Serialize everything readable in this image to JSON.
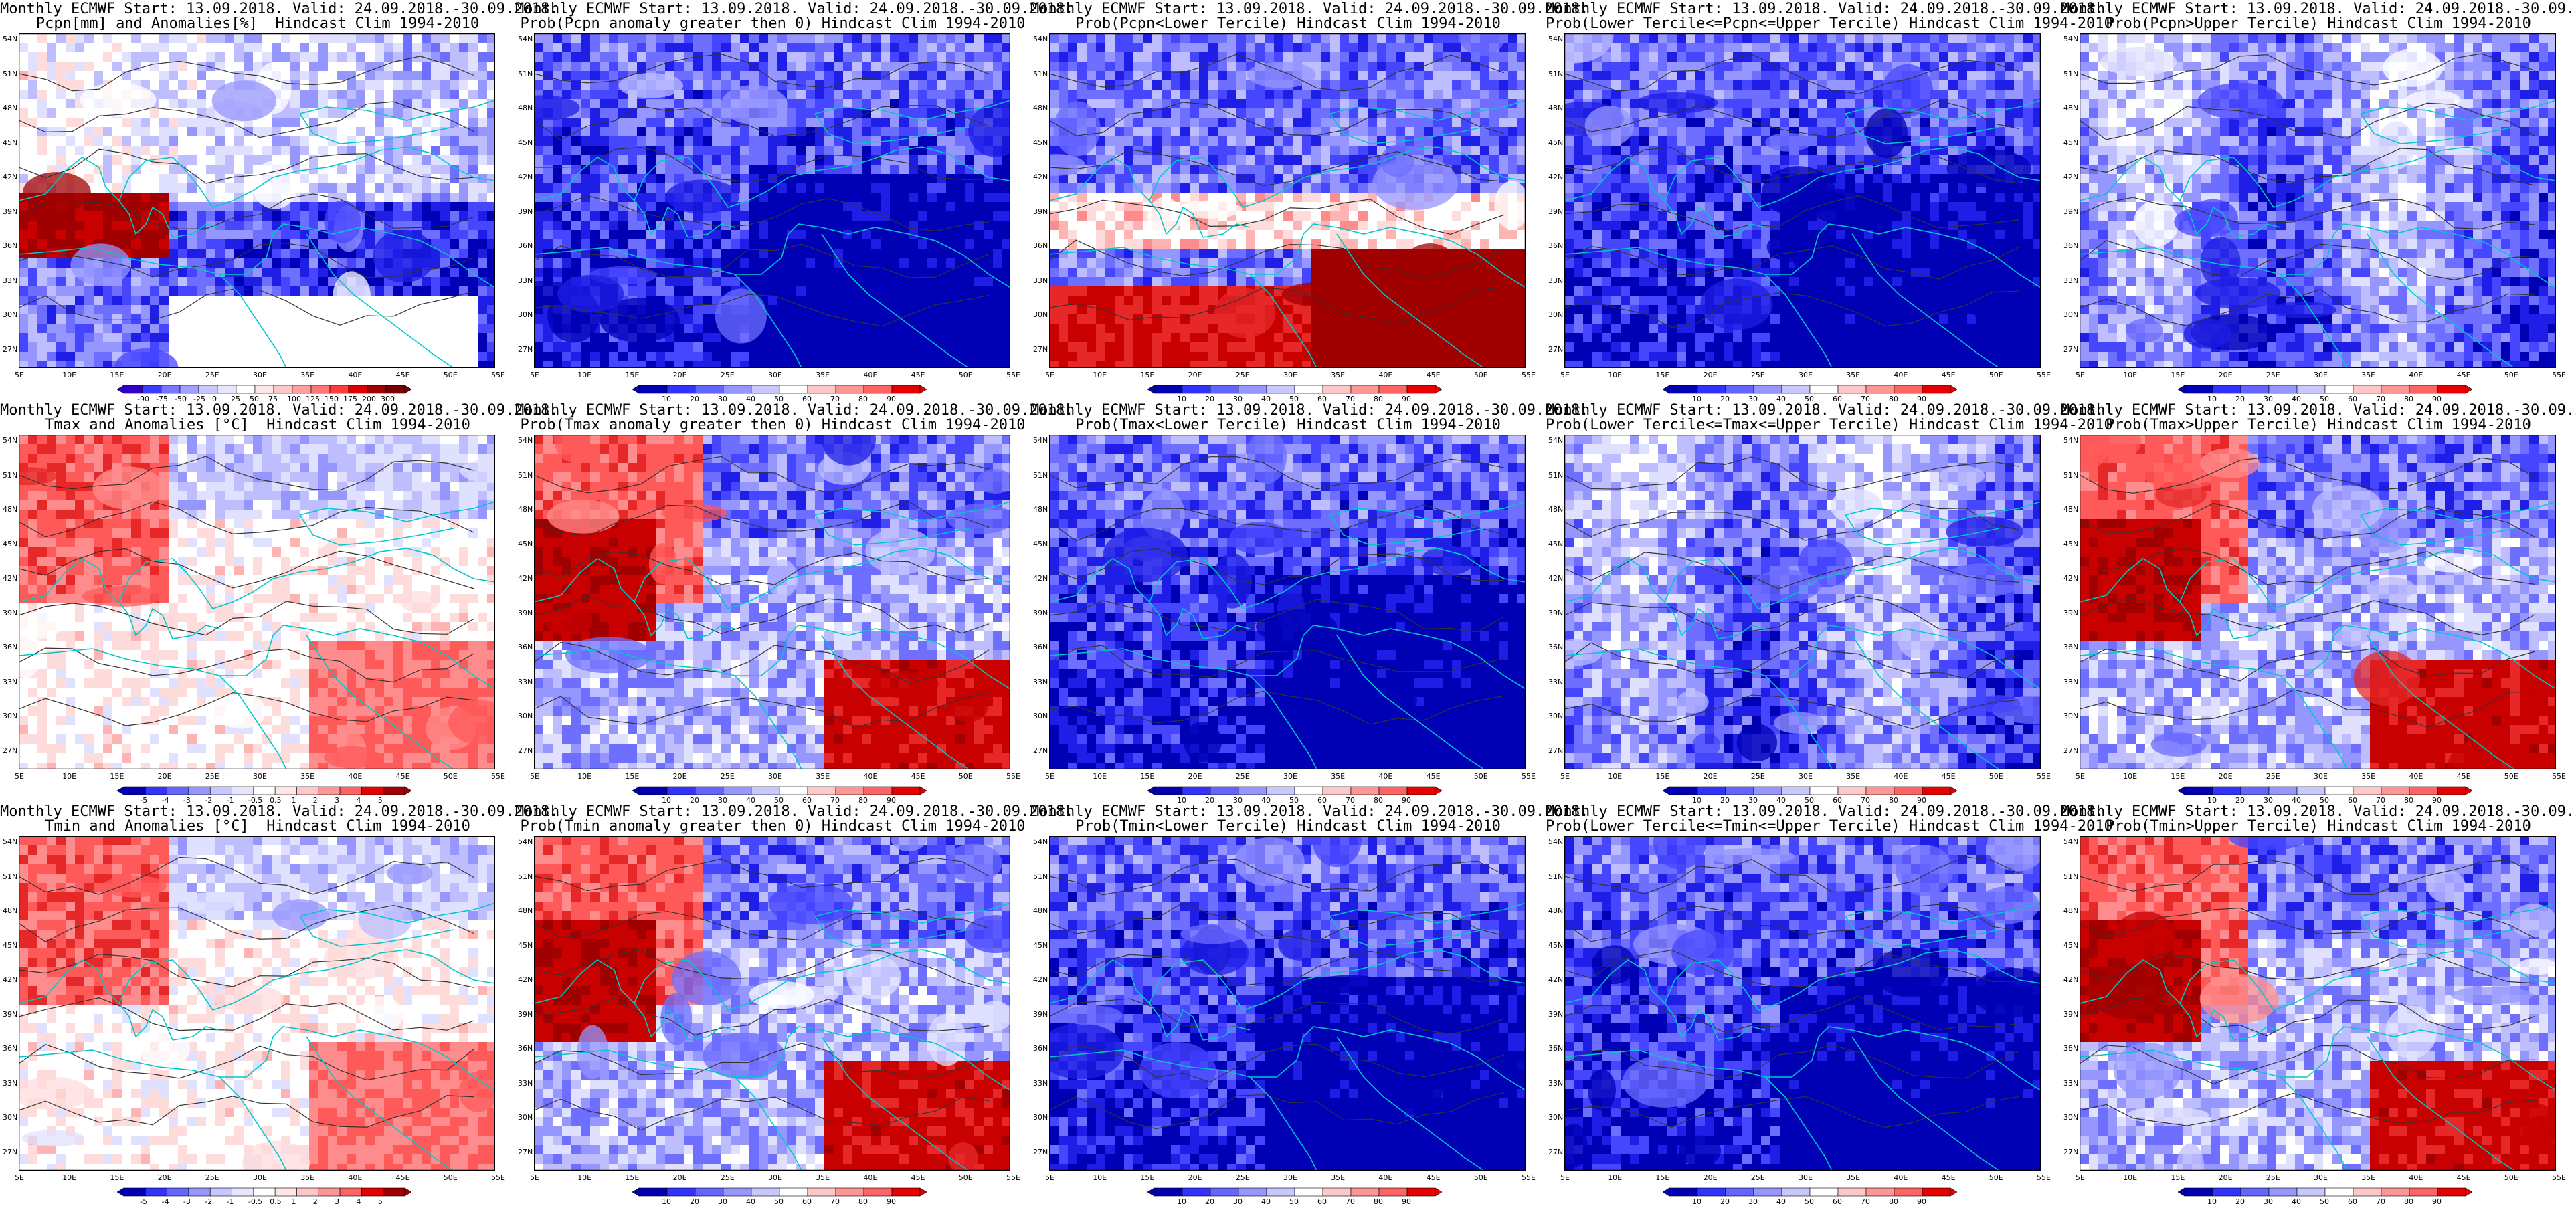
{
  "title_line1": "Monthly ECMWF Start: 13.09.2018. Valid: 24.09.2018.-30.09.2018.",
  "lat_labels": [
    "54N",
    "51N",
    "48N",
    "45N",
    "42N",
    "39N",
    "36N",
    "33N",
    "30N",
    "27N"
  ],
  "lon_labels": [
    "5E",
    "10E",
    "15E",
    "20E",
    "25E",
    "30E",
    "35E",
    "40E",
    "45E",
    "50E",
    "55E"
  ],
  "colors": {
    "coast": "#00c8c8",
    "contour": "#333333",
    "white": "#ffffff",
    "blue_dark": "#0000b4",
    "red_dark": "#a00000"
  },
  "panels": [
    {
      "id": "pcpn-anom",
      "row": 0,
      "col": 0,
      "subtitle": "Pcpn[mm] and Anomalies[%]  Hindcast Clim 1994-2010",
      "scale": [
        "-90",
        "-75",
        "-50",
        "-25",
        "0",
        "25",
        "50",
        "75",
        "100",
        "125",
        "150",
        "175",
        "200",
        "300"
      ],
      "bar": [
        "#3200c8",
        "#3c3cff",
        "#7878ff",
        "#a0a0ff",
        "#c8c8ff",
        "#e6e6ff",
        "#ffffff",
        "#ffe6e6",
        "#ffc8c8",
        "#ffa0a0",
        "#ff7878",
        "#ff3c3c",
        "#dc0000",
        "#a00000",
        "#780000"
      ],
      "pattern": "pcpn"
    },
    {
      "id": "prob-pcpn-pos",
      "row": 0,
      "col": 1,
      "subtitle": "Prob(Pcpn anomaly greater then 0) Hindcast Clim 1994-2010",
      "scale": [
        "10",
        "20",
        "30",
        "40",
        "50",
        "60",
        "70",
        "80",
        "90"
      ],
      "pattern": "bluemost"
    },
    {
      "id": "prob-pcpn-lower",
      "row": 0,
      "col": 2,
      "subtitle": "Prob(Pcpn<Lower Tercile) Hindcast Clim 1994-2010",
      "scale": [
        "10",
        "20",
        "30",
        "40",
        "50",
        "60",
        "70",
        "80",
        "90"
      ],
      "pattern": "redsouth"
    },
    {
      "id": "prob-pcpn-middle",
      "row": 0,
      "col": 3,
      "subtitle": "Prob(Lower Tercile<=Pcpn<=Upper Tercile) Hindcast Clim 1994-2010",
      "scale": [
        "10",
        "20",
        "30",
        "40",
        "50",
        "60",
        "70",
        "80",
        "90"
      ],
      "pattern": "bluemost"
    },
    {
      "id": "prob-pcpn-upper",
      "row": 0,
      "col": 4,
      "subtitle": "Prob(Pcpn>Upper Tercile) Hindcast Clim 1994-2010",
      "scale": [
        "10",
        "20",
        "30",
        "40",
        "50",
        "60",
        "70",
        "80",
        "90"
      ],
      "pattern": "mixed"
    },
    {
      "id": "tmax-anom",
      "row": 1,
      "col": 0,
      "subtitle": "Tmax and Anomalies [°C]  Hindcast Clim 1994-2010",
      "scale": [
        "-5",
        "-4",
        "-3",
        "-2",
        "-1",
        "-0.5",
        "0.5",
        "1",
        "2",
        "3",
        "4",
        "5"
      ],
      "pattern": "redwest"
    },
    {
      "id": "prob-tmax-pos",
      "row": 1,
      "col": 1,
      "subtitle": "Prob(Tmax anomaly greater then 0) Hindcast Clim 1994-2010",
      "scale": [
        "10",
        "20",
        "30",
        "40",
        "50",
        "60",
        "70",
        "80",
        "90"
      ],
      "pattern": "redwestsouth"
    },
    {
      "id": "prob-tmax-lower",
      "row": 1,
      "col": 2,
      "subtitle": "Prob(Tmax<Lower Tercile) Hindcast Clim 1994-2010",
      "scale": [
        "10",
        "20",
        "30",
        "40",
        "50",
        "60",
        "70",
        "80",
        "90"
      ],
      "pattern": "bluemost"
    },
    {
      "id": "prob-tmax-middle",
      "row": 1,
      "col": 3,
      "subtitle": "Prob(Lower Tercile<=Tmax<=Upper Tercile) Hindcast Clim 1994-2010",
      "scale": [
        "10",
        "20",
        "30",
        "40",
        "50",
        "60",
        "70",
        "80",
        "90"
      ],
      "pattern": "mixed"
    },
    {
      "id": "prob-tmax-upper",
      "row": 1,
      "col": 4,
      "subtitle": "Prob(Tmax>Upper Tercile) Hindcast Clim 1994-2010",
      "scale": [
        "10",
        "20",
        "30",
        "40",
        "50",
        "60",
        "70",
        "80",
        "90"
      ],
      "pattern": "redwestsouth"
    },
    {
      "id": "tmin-anom",
      "row": 2,
      "col": 0,
      "subtitle": "Tmin and Anomalies [°C]  Hindcast Clim 1994-2010",
      "scale": [
        "-5",
        "-4",
        "-3",
        "-2",
        "-1",
        "-0.5",
        "0.5",
        "1",
        "2",
        "3",
        "4",
        "5"
      ],
      "pattern": "redwest"
    },
    {
      "id": "prob-tmin-pos",
      "row": 2,
      "col": 1,
      "subtitle": "Prob(Tmin anomaly greater then 0) Hindcast Clim 1994-2010",
      "scale": [
        "10",
        "20",
        "30",
        "40",
        "50",
        "60",
        "70",
        "80",
        "90"
      ],
      "pattern": "redwestsouth"
    },
    {
      "id": "prob-tmin-lower",
      "row": 2,
      "col": 2,
      "subtitle": "Prob(Tmin<Lower Tercile) Hindcast Clim 1994-2010",
      "scale": [
        "10",
        "20",
        "30",
        "40",
        "50",
        "60",
        "70",
        "80",
        "90"
      ],
      "pattern": "bluemost"
    },
    {
      "id": "prob-tmin-middle",
      "row": 2,
      "col": 3,
      "subtitle": "Prob(Lower Tercile<=Tmin<=Upper Tercile) Hindcast Clim 1994-2010",
      "scale": [
        "10",
        "20",
        "30",
        "40",
        "50",
        "60",
        "70",
        "80",
        "90"
      ],
      "pattern": "bluemost"
    },
    {
      "id": "prob-tmin-upper",
      "row": 2,
      "col": 4,
      "subtitle": "Prob(Tmin>Upper Tercile) Hindcast Clim 1994-2010",
      "scale": [
        "10",
        "20",
        "30",
        "40",
        "50",
        "60",
        "70",
        "80",
        "90"
      ],
      "pattern": "redwestsouth"
    }
  ]
}
